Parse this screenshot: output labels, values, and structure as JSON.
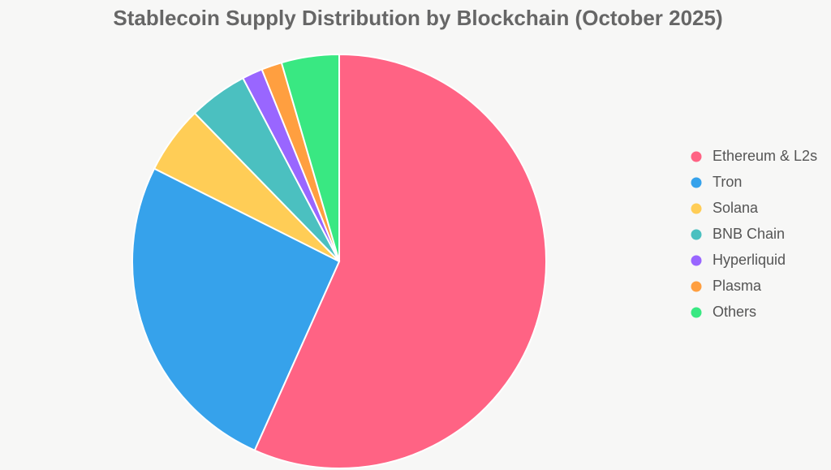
{
  "chart_data": {
    "type": "pie",
    "title": "Stablecoin Supply Distribution by Blockchain (October 2025)",
    "categories": [
      "Ethereum & L2s",
      "Tron",
      "Solana",
      "BNB Chain",
      "Hyperliquid",
      "Plasma",
      "Others"
    ],
    "values": [
      56.7,
      25.7,
      5.3,
      4.6,
      1.6,
      1.6,
      4.5
    ],
    "colors": [
      "#ff6384",
      "#36a2eb",
      "#ffcd56",
      "#4bc0c0",
      "#9966ff",
      "#ff9f40",
      "#39e882"
    ],
    "legend": "right"
  }
}
